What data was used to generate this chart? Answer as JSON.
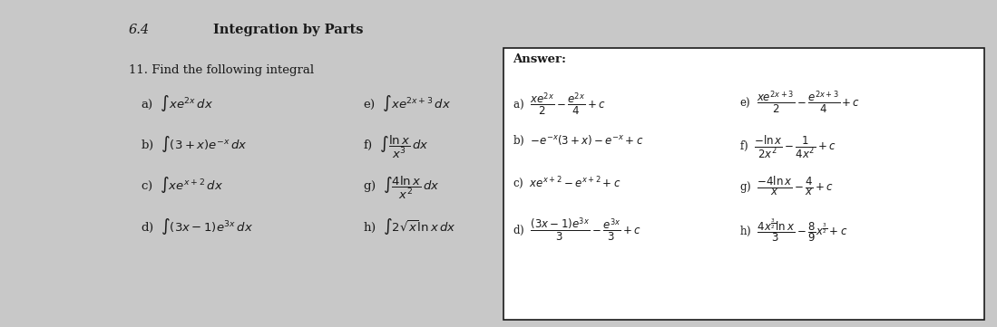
{
  "bg_color": "#b0b0b0",
  "paper_color": "#c8c8c8",
  "box_color": "#ffffff",
  "text_color": "#1a1a1a",
  "title_num": "6.4",
  "title_text": "Integration by Parts",
  "problem_header": "11. Find the following integral",
  "answer_header": "Answer:",
  "problems_a_d": [
    "a)  $\\int xe^{2x}\\,dx$",
    "b)  $\\int (3+x)e^{-x}\\,dx$",
    "c)  $\\int xe^{x+2}\\,dx$",
    "d)  $\\int (3x-1)e^{3x}\\,dx$"
  ],
  "problems_e_h": [
    "e)  $\\int xe^{2x+3}\\,dx$",
    "f)  $\\int \\dfrac{\\ln x}{x^3}\\,dx$",
    "g)  $\\int \\dfrac{4\\ln x}{x^2}\\,dx$",
    "h)  $\\int 2\\sqrt{x}\\ln x\\,dx$"
  ],
  "answers_a_d": [
    "a)  $\\dfrac{xe^{2x}}{2} - \\dfrac{e^{2x}}{4} + c$",
    "b)  $-e^{-x}(3+x)-e^{-x}+c$",
    "c)  $xe^{x+2}-e^{x+2}+c$",
    "d)  $\\dfrac{(3x-1)e^{3x}}{3} - \\dfrac{e^{3x}}{3} + c$"
  ],
  "answers_e_h": [
    "e)  $\\dfrac{xe^{2x+3}}{2} - \\dfrac{e^{2x+3}}{4} + c$",
    "f)  $\\dfrac{-\\ln x}{2x^2} - \\dfrac{1}{4x^2} + c$",
    "g)  $\\dfrac{-4\\ln x}{x} - \\dfrac{4}{x} + c$",
    "h)  $\\dfrac{4x^{\\frac{3}{2}}\\ln x}{3} - \\dfrac{8}{9}x^{\\frac{3}{2}} + c$"
  ],
  "fig_width": 10.99,
  "fig_height": 3.61,
  "dpi": 100
}
